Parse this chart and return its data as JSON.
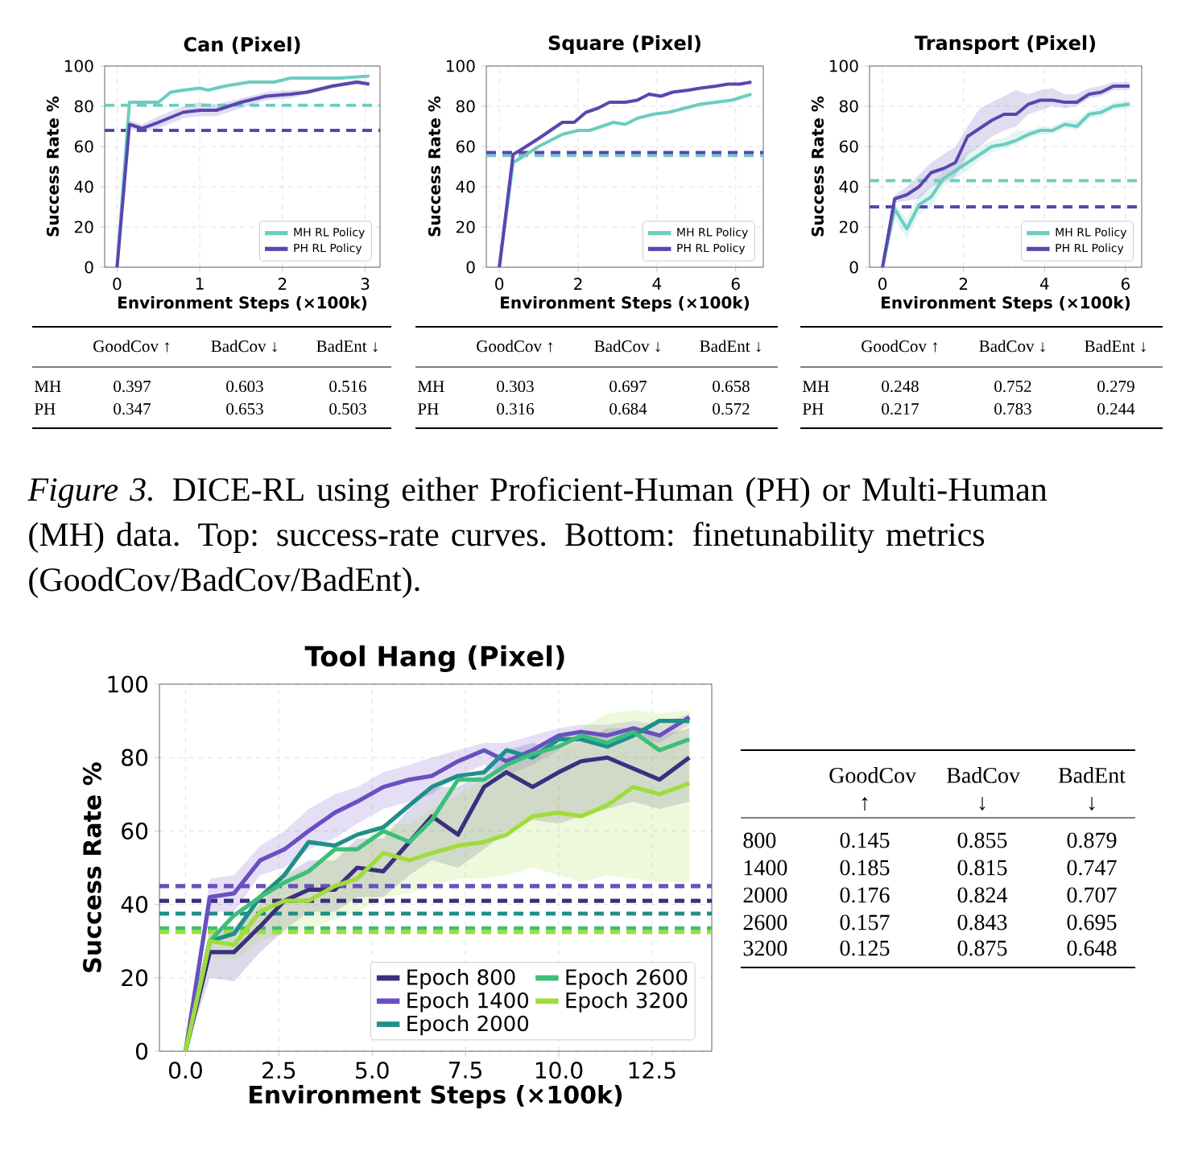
{
  "chart_data": [
    {
      "type": "line",
      "title": "Can (Pixel)",
      "xlabel": "Environment Steps (×100k)",
      "ylabel": "Success Rate %",
      "xlim": [
        -0.15,
        3.18
      ],
      "ylim": [
        0,
        100
      ],
      "xticks": [
        0,
        1,
        2,
        3
      ],
      "yticks": [
        0,
        20,
        40,
        60,
        80,
        100
      ],
      "grid": true,
      "legend": "bottom right",
      "series": [
        {
          "name": "MH RL Policy",
          "color": "#6ccdc0",
          "x": [
            0,
            0.15,
            0.3,
            0.5,
            0.65,
            0.8,
            1.0,
            1.1,
            1.3,
            1.6,
            1.9,
            2.1,
            2.4,
            2.7,
            3.05
          ],
          "values": [
            0,
            82,
            82,
            82,
            87,
            88,
            89,
            88,
            90,
            92,
            92,
            94,
            94,
            94,
            95
          ]
        },
        {
          "name": "PH RL Policy",
          "color": "#5b45b0",
          "x": [
            0,
            0.15,
            0.3,
            0.5,
            0.8,
            1.0,
            1.2,
            1.5,
            1.8,
            2.1,
            2.3,
            2.6,
            2.9,
            3.05
          ],
          "values": [
            0,
            71,
            69,
            72,
            77,
            78,
            78,
            82,
            85,
            86,
            87,
            90,
            92,
            91
          ],
          "lower": [
            0,
            69,
            67,
            69,
            74,
            75,
            75,
            79,
            83,
            84,
            86,
            89,
            91,
            90
          ],
          "upper": [
            0,
            73,
            71,
            75,
            80,
            82,
            81,
            84,
            87,
            88,
            88,
            91,
            93,
            92
          ]
        }
      ],
      "ref_lines": [
        {
          "axis": "y",
          "value": 80.5,
          "color": "#6ccdc0",
          "line_style": "dashed"
        },
        {
          "axis": "y",
          "value": 68,
          "color": "#5b45b0",
          "line_style": "dashed"
        }
      ]
    },
    {
      "type": "line",
      "title": "Square (Pixel)",
      "xlabel": "Environment Steps (×100k)",
      "ylabel": "Success Rate %",
      "xlim": [
        -0.33,
        6.7
      ],
      "ylim": [
        0,
        100
      ],
      "xticks": [
        0,
        2,
        4,
        6
      ],
      "yticks": [
        0,
        20,
        40,
        60,
        80,
        100
      ],
      "grid": true,
      "legend": "bottom right",
      "series": [
        {
          "name": "MH RL Policy",
          "color": "#6ccdc0",
          "x": [
            0,
            0.35,
            0.6,
            1,
            1.3,
            1.6,
            2,
            2.3,
            2.6,
            2.9,
            3.2,
            3.5,
            3.9,
            4.3,
            4.7,
            5.1,
            5.5,
            5.9,
            6.4
          ],
          "values": [
            0,
            52,
            55,
            60,
            63,
            66,
            68,
            68,
            70,
            72,
            71,
            74,
            76,
            77,
            79,
            81,
            82,
            83,
            86
          ]
        },
        {
          "name": "PH RL Policy",
          "color": "#5b45b0",
          "x": [
            0,
            0.35,
            0.6,
            1,
            1.3,
            1.6,
            1.9,
            2.2,
            2.5,
            2.8,
            3.2,
            3.5,
            3.8,
            4.1,
            4.4,
            4.8,
            5.1,
            5.5,
            5.8,
            6.1,
            6.4
          ],
          "values": [
            0,
            56,
            59,
            64,
            68,
            72,
            72,
            77,
            79,
            82,
            82,
            83,
            86,
            85,
            87,
            88,
            89,
            90,
            91,
            91,
            92
          ]
        }
      ],
      "ref_lines": [
        {
          "axis": "y",
          "value": 55.5,
          "color": "#6ccdc0",
          "line_style": "dashed"
        },
        {
          "axis": "y",
          "value": 57,
          "color": "#5b45b0",
          "line_style": "dashed"
        }
      ]
    },
    {
      "type": "line",
      "title": "Transport (Pixel)",
      "xlabel": "Environment Steps (×100k)",
      "ylabel": "Success Rate %",
      "xlim": [
        -0.32,
        6.4
      ],
      "ylim": [
        0,
        100
      ],
      "xticks": [
        0,
        2,
        4,
        6
      ],
      "yticks": [
        0,
        20,
        40,
        60,
        80,
        100
      ],
      "grid": true,
      "legend": "bottom right",
      "x": [
        0,
        0.3,
        0.6,
        0.9,
        1.2,
        1.5,
        1.8,
        2.1,
        2.4,
        2.7,
        3.0,
        3.3,
        3.6,
        3.9,
        4.2,
        4.5,
        4.8,
        5.1,
        5.4,
        5.7,
        6.1
      ],
      "series": [
        {
          "name": "MH RL Policy",
          "color": "#6ccdc0",
          "values": [
            0,
            29,
            19,
            31,
            35,
            44,
            48,
            52,
            56,
            60,
            61,
            63,
            66,
            68,
            68,
            71,
            70,
            76,
            77,
            80,
            81
          ],
          "lower": [
            0,
            24,
            14,
            26,
            30,
            40,
            44,
            48,
            53,
            57,
            59,
            61,
            64,
            66,
            66,
            69,
            68,
            74,
            75,
            78,
            79
          ],
          "upper": [
            0,
            32,
            24,
            36,
            40,
            48,
            52,
            58,
            60,
            63,
            64,
            68,
            68,
            70,
            70,
            73,
            73,
            78,
            79,
            82,
            83
          ]
        },
        {
          "name": "PH RL Policy",
          "color": "#5b45b0",
          "values": [
            0,
            34,
            36,
            40,
            47,
            49,
            52,
            65,
            69,
            73,
            76,
            76,
            81,
            83,
            83,
            82,
            82,
            86,
            87,
            90,
            90
          ],
          "lower": [
            0,
            32,
            33,
            34,
            40,
            42,
            45,
            56,
            60,
            65,
            68,
            70,
            76,
            78,
            80,
            79,
            80,
            84,
            85,
            88,
            88
          ],
          "upper": [
            0,
            36,
            40,
            46,
            52,
            56,
            60,
            70,
            79,
            82,
            85,
            88,
            86,
            88,
            89,
            86,
            86,
            89,
            90,
            92,
            92
          ]
        }
      ],
      "ref_lines": [
        {
          "axis": "y",
          "value": 43,
          "color": "#6ccdc0",
          "line_style": "dashed"
        },
        {
          "axis": "y",
          "value": 30,
          "color": "#5b45b0",
          "line_style": "dashed"
        }
      ]
    },
    {
      "type": "heatmap",
      "data_labels": true,
      "categories": [
        "GoodCov ↑",
        "BadCov ↓",
        "BadEnt ↓"
      ],
      "y_categories": [
        "MH",
        "PH"
      ],
      "cells": [
        [
          0.397,
          0.603,
          0.516
        ],
        [
          0.347,
          0.653,
          0.503
        ]
      ]
    },
    {
      "type": "heatmap",
      "data_labels": true,
      "categories": [
        "GoodCov ↑",
        "BadCov ↓",
        "BadEnt ↓"
      ],
      "y_categories": [
        "MH",
        "PH"
      ],
      "cells": [
        [
          0.303,
          0.697,
          0.658
        ],
        [
          0.316,
          0.684,
          0.572
        ]
      ]
    },
    {
      "type": "heatmap",
      "data_labels": true,
      "categories": [
        "GoodCov ↑",
        "BadCov ↓",
        "BadEnt ↓"
      ],
      "y_categories": [
        "MH",
        "PH"
      ],
      "cells": [
        [
          0.248,
          0.752,
          0.279
        ],
        [
          0.217,
          0.783,
          0.244
        ]
      ]
    },
    {
      "type": "other",
      "annotations": [
        "*Figure 3.* DICE-RL using either Proficient-Human (PH) or Multi-Human (MH) data. Top: success-rate curves. Bottom: finetunability metrics (GoodCov/BadCov/BadEnt)."
      ]
    },
    {
      "type": "line",
      "title": "Tool Hang (Pixel)",
      "xlabel": "Environment Steps (×100k)",
      "ylabel": "Success Rate %",
      "xlim": [
        -0.7,
        14.1
      ],
      "ylim": [
        0,
        100
      ],
      "xticks": [
        {
          "value": 0,
          "label": "0.0"
        },
        2.5,
        {
          "value": 5,
          "label": "5.0"
        },
        7.5,
        {
          "value": 10,
          "label": "10.0"
        },
        12.5
      ],
      "yticks": [
        0,
        20,
        40,
        60,
        80,
        100
      ],
      "grid": true,
      "legend": "bottom right",
      "x": [
        0,
        0.65,
        1.3,
        2,
        2.65,
        3.3,
        4,
        4.6,
        5.3,
        6,
        6.6,
        7.3,
        8,
        8.6,
        9.3,
        10,
        10.6,
        11.3,
        12,
        12.7,
        13.5
      ],
      "series": [
        {
          "name": "Epoch 800",
          "color": "#3b2f80",
          "values": [
            0,
            27,
            27,
            34,
            41,
            44,
            44,
            50,
            49,
            57,
            64,
            59,
            72,
            76,
            72,
            76,
            79,
            80,
            77,
            74,
            80
          ],
          "lower": [
            0,
            20,
            19,
            27,
            33,
            38,
            38,
            42,
            42,
            48,
            52,
            50,
            55,
            60,
            63,
            62,
            64,
            66,
            68,
            66,
            68
          ],
          "upper": [
            0,
            33,
            34,
            40,
            48,
            52,
            52,
            58,
            58,
            66,
            72,
            72,
            76,
            82,
            84,
            82,
            84,
            88,
            88,
            86,
            88
          ]
        },
        {
          "name": "Epoch 1400",
          "color": "#6a4fc0",
          "values": [
            0,
            42,
            43,
            52,
            55,
            60,
            65,
            68,
            72,
            74,
            75,
            79,
            82,
            79,
            82,
            86,
            87,
            86,
            88,
            86,
            91
          ],
          "lower": [
            0,
            38,
            38,
            48,
            50,
            55,
            58,
            62,
            66,
            68,
            70,
            75,
            78,
            75,
            78,
            82,
            84,
            84,
            86,
            84,
            89
          ],
          "upper": [
            0,
            47,
            48,
            56,
            60,
            66,
            70,
            72,
            76,
            78,
            80,
            82,
            84,
            84,
            86,
            88,
            89,
            89,
            90,
            89,
            92
          ]
        },
        {
          "name": "Epoch 2000",
          "color": "#1f8f8a",
          "values": [
            0,
            30,
            32,
            42,
            48,
            57,
            56,
            59,
            61,
            67,
            72,
            75,
            76,
            82,
            80,
            85,
            85,
            83,
            86,
            90,
            90
          ]
        },
        {
          "name": "Epoch 2600",
          "color": "#3bbf7a",
          "values": [
            0,
            30,
            37,
            42,
            46,
            49,
            55,
            55,
            60,
            57,
            63,
            74,
            74,
            78,
            81,
            83,
            86,
            84,
            87,
            82,
            85
          ]
        },
        {
          "name": "Epoch 3200",
          "color": "#a0dc3c",
          "values": [
            0,
            30,
            29,
            38,
            41,
            41,
            45,
            47,
            54,
            52,
            54,
            56,
            57,
            59,
            64,
            65,
            64,
            67,
            72,
            70,
            73
          ],
          "lower": [
            0,
            26,
            25,
            30,
            32,
            33,
            36,
            38,
            42,
            43,
            45,
            47,
            47,
            48,
            50,
            48,
            46,
            48,
            47,
            46,
            46
          ],
          "upper": [
            0,
            34,
            33,
            44,
            48,
            50,
            54,
            56,
            62,
            62,
            66,
            70,
            74,
            78,
            82,
            86,
            88,
            92,
            93,
            92,
            93
          ]
        }
      ],
      "ref_lines": [
        {
          "axis": "y",
          "value": 45,
          "color": "#6a4fc0",
          "line_style": "dashed"
        },
        {
          "axis": "y",
          "value": 41,
          "color": "#3b2f80",
          "line_style": "dashed"
        },
        {
          "axis": "y",
          "value": 37.5,
          "color": "#1f8f8a",
          "line_style": "dashed"
        },
        {
          "axis": "y",
          "value": 33.5,
          "color": "#3bbf7a",
          "line_style": "dashed"
        },
        {
          "axis": "y",
          "value": 32.5,
          "color": "#a0dc3c",
          "line_style": "dashed"
        }
      ]
    },
    {
      "type": "heatmap",
      "data_labels": true,
      "categories": [
        "GoodCov ↑",
        "BadCov ↓",
        "BadEnt ↓"
      ],
      "y_categories": [
        "800",
        "1400",
        "2000",
        "2600",
        "3200"
      ],
      "cells": [
        [
          0.145,
          0.855,
          0.879
        ],
        [
          0.185,
          0.815,
          0.747
        ],
        [
          0.176,
          0.824,
          0.707
        ],
        [
          0.157,
          0.843,
          0.695
        ],
        [
          0.125,
          0.875,
          0.648
        ]
      ]
    }
  ]
}
